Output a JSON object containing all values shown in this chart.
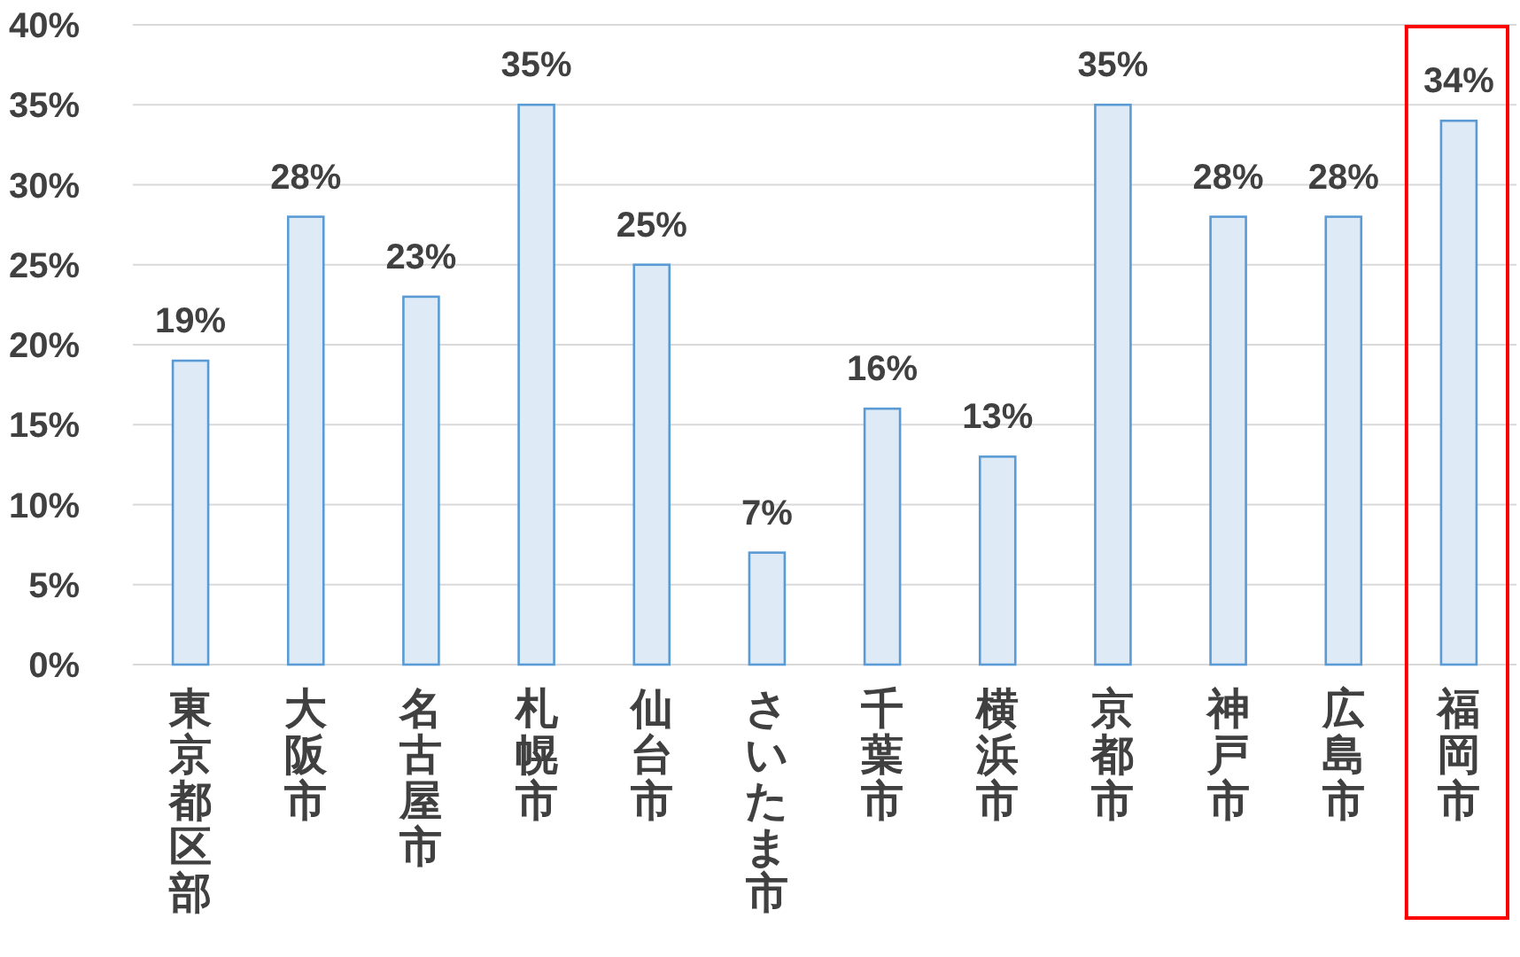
{
  "chart_data": {
    "type": "bar",
    "categories": [
      "東京都区部",
      "大阪市",
      "名古屋市",
      "札幌市",
      "仙台市",
      "さいたま市",
      "千葉市",
      "横浜市",
      "京都市",
      "神戸市",
      "広島市",
      "福岡市"
    ],
    "values": [
      19,
      28,
      23,
      35,
      25,
      7,
      16,
      13,
      35,
      28,
      28,
      34
    ],
    "value_labels": [
      "19%",
      "28%",
      "23%",
      "35%",
      "25%",
      "7%",
      "16%",
      "13%",
      "35%",
      "28%",
      "28%",
      "34%"
    ],
    "color": "#deebf7",
    "ylim": [
      0,
      40
    ],
    "yticks": [
      {
        "value": 0,
        "label": "0%"
      },
      {
        "value": 5,
        "label": "5%"
      },
      {
        "value": 10,
        "label": "10%"
      },
      {
        "value": 15,
        "label": "15%"
      },
      {
        "value": 20,
        "label": "20%"
      },
      {
        "value": 25,
        "label": "25%"
      },
      {
        "value": 30,
        "label": "30%"
      },
      {
        "value": 35,
        "label": "35%"
      },
      {
        "value": 40,
        "label": "40%"
      }
    ],
    "grid": "y"
  }
}
